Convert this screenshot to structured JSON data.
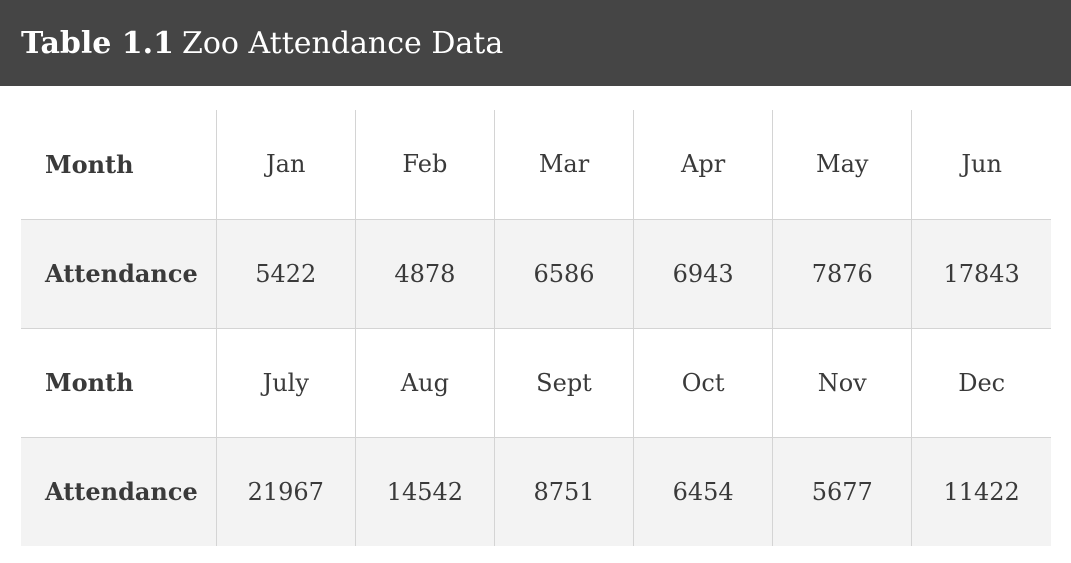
{
  "caption": {
    "label": "Table 1.1",
    "text": "Zoo Attendance Data"
  },
  "rows": [
    {
      "header": "Month",
      "cells": [
        "Jan",
        "Feb",
        "Mar",
        "Apr",
        "May",
        "Jun"
      ]
    },
    {
      "header": "Attendance",
      "cells": [
        "5422",
        "4878",
        "6586",
        "6943",
        "7876",
        "17843"
      ]
    },
    {
      "header": "Month",
      "cells": [
        "July",
        "Aug",
        "Sept",
        "Oct",
        "Nov",
        "Dec"
      ]
    },
    {
      "header": "Attendance",
      "cells": [
        "21967",
        "14542",
        "8751",
        "6454",
        "5677",
        "11422"
      ]
    }
  ],
  "colors": {
    "title_bar_bg": "#454545",
    "title_text": "#ffffff",
    "shaded_row_bg": "#f3f3f3",
    "text": "#3a3a3a",
    "border": "#d4d4d4"
  }
}
